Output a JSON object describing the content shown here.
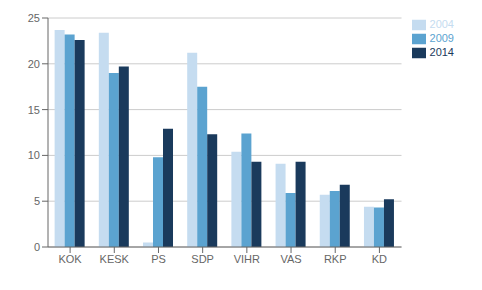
{
  "chart_data": {
    "type": "bar",
    "categories": [
      "KOK",
      "KESK",
      "PS",
      "SDP",
      "VIHR",
      "VAS",
      "RKP",
      "KD"
    ],
    "series": [
      {
        "name": "2004",
        "color": "#c5dcf0",
        "values": [
          23.7,
          23.4,
          0.5,
          21.2,
          10.4,
          9.1,
          5.7,
          4.4
        ]
      },
      {
        "name": "2009",
        "color": "#5ba3d0",
        "values": [
          23.2,
          19.0,
          9.8,
          17.5,
          12.4,
          5.9,
          6.1,
          4.3
        ]
      },
      {
        "name": "2014",
        "color": "#1a3a5c",
        "values": [
          22.6,
          19.7,
          12.9,
          12.3,
          9.3,
          9.3,
          6.8,
          5.2
        ]
      }
    ],
    "ylim": [
      0,
      25
    ],
    "yticks": [
      0,
      5,
      10,
      15,
      20,
      25
    ],
    "grid": true,
    "legend": "upper right"
  }
}
